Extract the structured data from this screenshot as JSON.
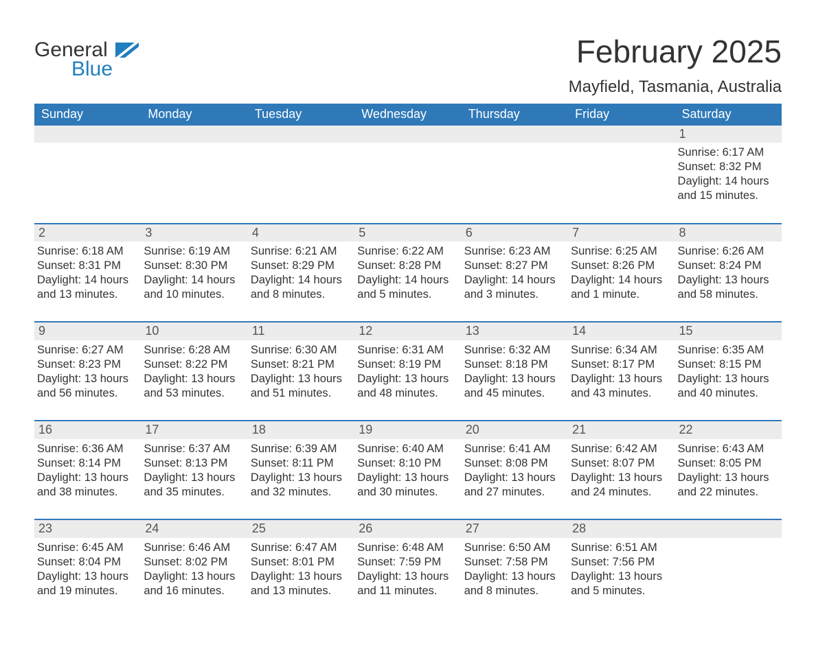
{
  "colors": {
    "header_bg": "#2f79b9",
    "header_text": "#ffffff",
    "row_border": "#2f79b9",
    "daynum_bg": "#ececec",
    "daynum_text": "#555555",
    "body_text": "#333333",
    "page_bg": "#ffffff",
    "logo_blue": "#1f7fbf"
  },
  "typography": {
    "title_fontsize": 46,
    "location_fontsize": 24,
    "dow_fontsize": 18,
    "daynum_fontsize": 18,
    "body_fontsize": 16.5,
    "font_family": "Arial"
  },
  "logo": {
    "line1": "General",
    "line2": "Blue"
  },
  "title": "February 2025",
  "location": "Mayfield, Tasmania, Australia",
  "day_of_week": [
    "Sunday",
    "Monday",
    "Tuesday",
    "Wednesday",
    "Thursday",
    "Friday",
    "Saturday"
  ],
  "labels": {
    "sunrise": "Sunrise: ",
    "sunset": "Sunset: ",
    "daylight": "Daylight: "
  },
  "weeks": [
    [
      null,
      null,
      null,
      null,
      null,
      null,
      {
        "day": 1,
        "sunrise": "6:17 AM",
        "sunset": "8:32 PM",
        "daylight": "14 hours and 15 minutes."
      }
    ],
    [
      {
        "day": 2,
        "sunrise": "6:18 AM",
        "sunset": "8:31 PM",
        "daylight": "14 hours and 13 minutes."
      },
      {
        "day": 3,
        "sunrise": "6:19 AM",
        "sunset": "8:30 PM",
        "daylight": "14 hours and 10 minutes."
      },
      {
        "day": 4,
        "sunrise": "6:21 AM",
        "sunset": "8:29 PM",
        "daylight": "14 hours and 8 minutes."
      },
      {
        "day": 5,
        "sunrise": "6:22 AM",
        "sunset": "8:28 PM",
        "daylight": "14 hours and 5 minutes."
      },
      {
        "day": 6,
        "sunrise": "6:23 AM",
        "sunset": "8:27 PM",
        "daylight": "14 hours and 3 minutes."
      },
      {
        "day": 7,
        "sunrise": "6:25 AM",
        "sunset": "8:26 PM",
        "daylight": "14 hours and 1 minute."
      },
      {
        "day": 8,
        "sunrise": "6:26 AM",
        "sunset": "8:24 PM",
        "daylight": "13 hours and 58 minutes."
      }
    ],
    [
      {
        "day": 9,
        "sunrise": "6:27 AM",
        "sunset": "8:23 PM",
        "daylight": "13 hours and 56 minutes."
      },
      {
        "day": 10,
        "sunrise": "6:28 AM",
        "sunset": "8:22 PM",
        "daylight": "13 hours and 53 minutes."
      },
      {
        "day": 11,
        "sunrise": "6:30 AM",
        "sunset": "8:21 PM",
        "daylight": "13 hours and 51 minutes."
      },
      {
        "day": 12,
        "sunrise": "6:31 AM",
        "sunset": "8:19 PM",
        "daylight": "13 hours and 48 minutes."
      },
      {
        "day": 13,
        "sunrise": "6:32 AM",
        "sunset": "8:18 PM",
        "daylight": "13 hours and 45 minutes."
      },
      {
        "day": 14,
        "sunrise": "6:34 AM",
        "sunset": "8:17 PM",
        "daylight": "13 hours and 43 minutes."
      },
      {
        "day": 15,
        "sunrise": "6:35 AM",
        "sunset": "8:15 PM",
        "daylight": "13 hours and 40 minutes."
      }
    ],
    [
      {
        "day": 16,
        "sunrise": "6:36 AM",
        "sunset": "8:14 PM",
        "daylight": "13 hours and 38 minutes."
      },
      {
        "day": 17,
        "sunrise": "6:37 AM",
        "sunset": "8:13 PM",
        "daylight": "13 hours and 35 minutes."
      },
      {
        "day": 18,
        "sunrise": "6:39 AM",
        "sunset": "8:11 PM",
        "daylight": "13 hours and 32 minutes."
      },
      {
        "day": 19,
        "sunrise": "6:40 AM",
        "sunset": "8:10 PM",
        "daylight": "13 hours and 30 minutes."
      },
      {
        "day": 20,
        "sunrise": "6:41 AM",
        "sunset": "8:08 PM",
        "daylight": "13 hours and 27 minutes."
      },
      {
        "day": 21,
        "sunrise": "6:42 AM",
        "sunset": "8:07 PM",
        "daylight": "13 hours and 24 minutes."
      },
      {
        "day": 22,
        "sunrise": "6:43 AM",
        "sunset": "8:05 PM",
        "daylight": "13 hours and 22 minutes."
      }
    ],
    [
      {
        "day": 23,
        "sunrise": "6:45 AM",
        "sunset": "8:04 PM",
        "daylight": "13 hours and 19 minutes."
      },
      {
        "day": 24,
        "sunrise": "6:46 AM",
        "sunset": "8:02 PM",
        "daylight": "13 hours and 16 minutes."
      },
      {
        "day": 25,
        "sunrise": "6:47 AM",
        "sunset": "8:01 PM",
        "daylight": "13 hours and 13 minutes."
      },
      {
        "day": 26,
        "sunrise": "6:48 AM",
        "sunset": "7:59 PM",
        "daylight": "13 hours and 11 minutes."
      },
      {
        "day": 27,
        "sunrise": "6:50 AM",
        "sunset": "7:58 PM",
        "daylight": "13 hours and 8 minutes."
      },
      {
        "day": 28,
        "sunrise": "6:51 AM",
        "sunset": "7:56 PM",
        "daylight": "13 hours and 5 minutes."
      },
      null
    ]
  ]
}
